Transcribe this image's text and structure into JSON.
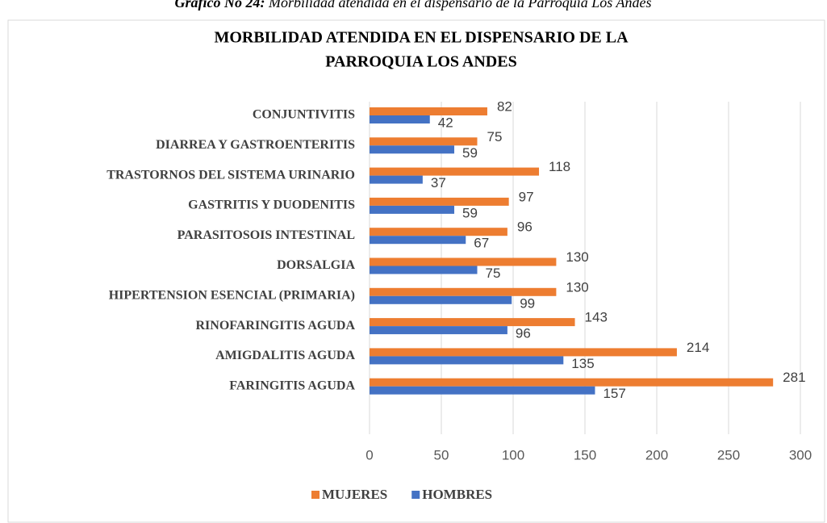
{
  "caption": {
    "label": "Gráfico No 24:",
    "text": "Morbilidad atendida en el dispensario de la Parroquia Los Andes"
  },
  "chart_data": {
    "type": "barh",
    "title": [
      "MORBILIDAD ATENDIDA EN EL DISPENSARIO DE LA",
      "PARROQUIA LOS ANDES"
    ],
    "categories": [
      "CONJUNTIVITIS",
      "DIARREA Y GASTROENTERITIS",
      "TRASTORNOS DEL SISTEMA URINARIO",
      "GASTRITIS Y DUODENITIS",
      "PARASITOSOIS INTESTINAL",
      "DORSALGIA",
      "HIPERTENSION ESENCIAL (PRIMARIA)",
      "RINOFARINGITIS AGUDA",
      "AMIGDALITIS AGUDA",
      "FARINGITIS AGUDA"
    ],
    "series": [
      {
        "name": "MUJERES",
        "color": "#ed7d31",
        "values": [
          82,
          75,
          118,
          97,
          96,
          130,
          130,
          143,
          214,
          281
        ]
      },
      {
        "name": "HOMBRES",
        "color": "#4472c4",
        "values": [
          42,
          59,
          37,
          59,
          67,
          75,
          99,
          96,
          135,
          157
        ]
      }
    ],
    "xlim": [
      0,
      300
    ],
    "xticks": [
      0,
      50,
      100,
      150,
      200,
      250,
      300
    ],
    "grid": true,
    "legend": "bottom"
  }
}
